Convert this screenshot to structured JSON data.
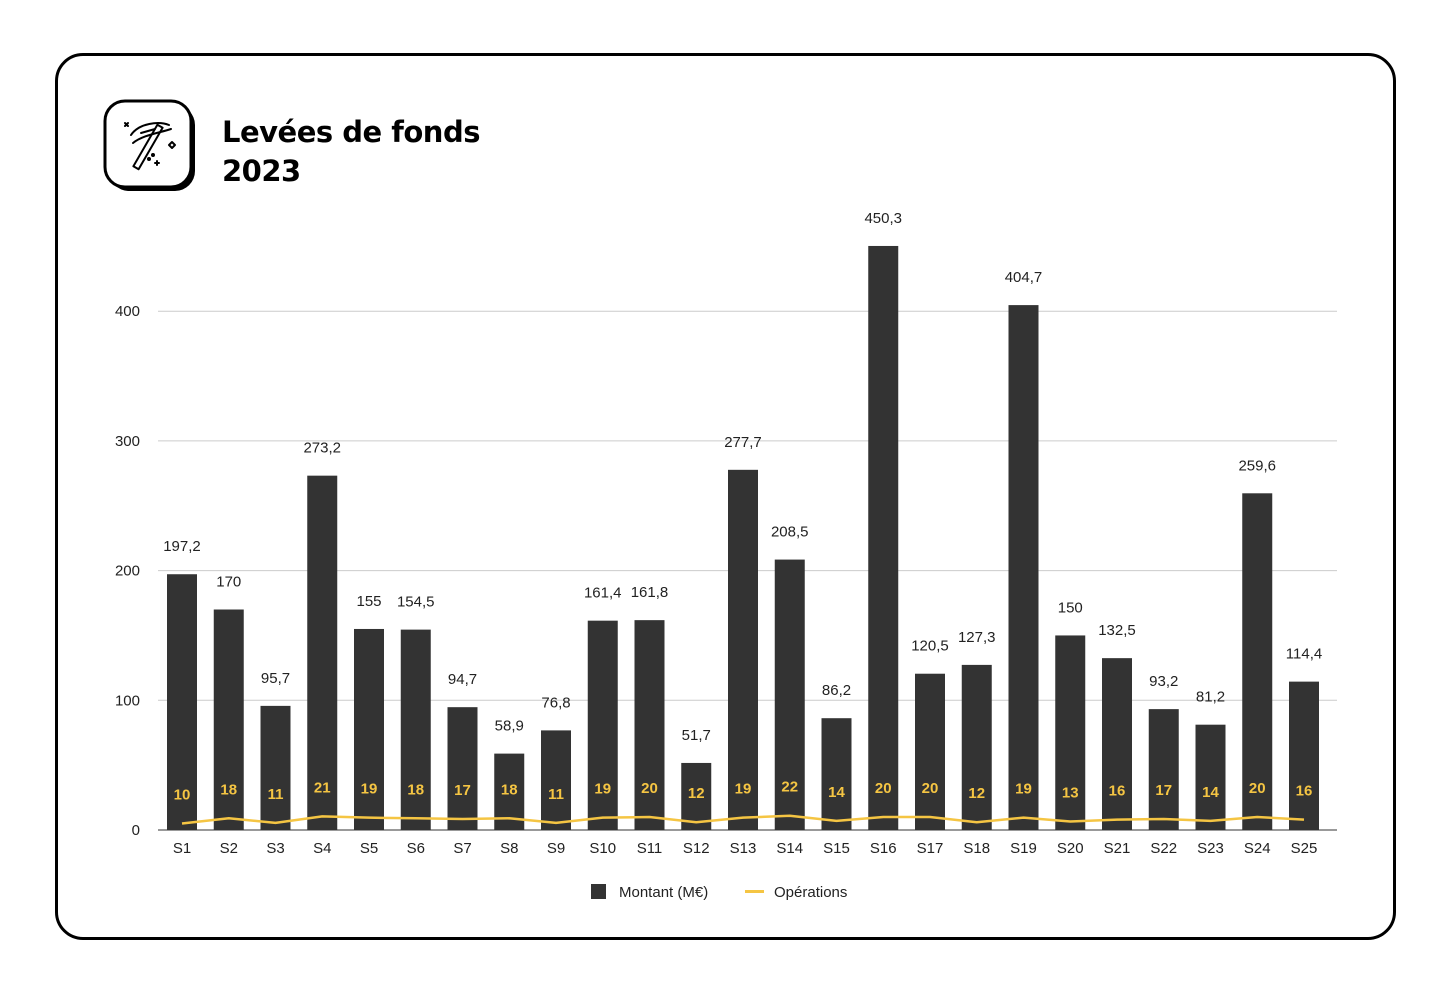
{
  "header": {
    "title_line1": "Levées de fonds",
    "title_line2": "2023",
    "logo_icon": "magic-wand-icon"
  },
  "colors": {
    "bar": "#333333",
    "line": "#f5c543",
    "grid": "#cccccc",
    "border": "#000000"
  },
  "chart_data": {
    "type": "bar",
    "categories": [
      "S1",
      "S2",
      "S3",
      "S4",
      "S5",
      "S6",
      "S7",
      "S8",
      "S9",
      "S10",
      "S11",
      "S12",
      "S13",
      "S14",
      "S15",
      "S16",
      "S17",
      "S18",
      "S19",
      "S20",
      "S21",
      "S22",
      "S23",
      "S24",
      "S25"
    ],
    "series": [
      {
        "name": "Montant (M€)",
        "type": "bar",
        "values": [
          197.2,
          170,
          95.7,
          273.2,
          155,
          154.5,
          94.7,
          58.9,
          76.8,
          161.4,
          161.8,
          51.7,
          277.7,
          208.5,
          86.2,
          450.3,
          120.5,
          127.3,
          404.7,
          150,
          132.5,
          93.2,
          81.2,
          259.6,
          114.4
        ],
        "labels": [
          "197,2",
          "170",
          "95,7",
          "273,2",
          "155",
          "154,5",
          "94,7",
          "58,9",
          "76,8",
          "161,4",
          "161,8",
          "51,7",
          "277,7",
          "208,5",
          "86,2",
          "450,3",
          "120,5",
          "127,3",
          "404,7",
          "150",
          "132,5",
          "93,2",
          "81,2",
          "259,6",
          "114,4"
        ]
      },
      {
        "name": "Opérations",
        "type": "line",
        "values": [
          10,
          18,
          11,
          21,
          19,
          18,
          17,
          18,
          11,
          19,
          20,
          12,
          19,
          22,
          14,
          20,
          20,
          12,
          19,
          13,
          16,
          17,
          14,
          20,
          16
        ]
      }
    ],
    "yticks": [
      0,
      100,
      200,
      300,
      400
    ],
    "ylim": [
      0,
      450.3
    ],
    "grid": true,
    "legend": "bottom"
  }
}
